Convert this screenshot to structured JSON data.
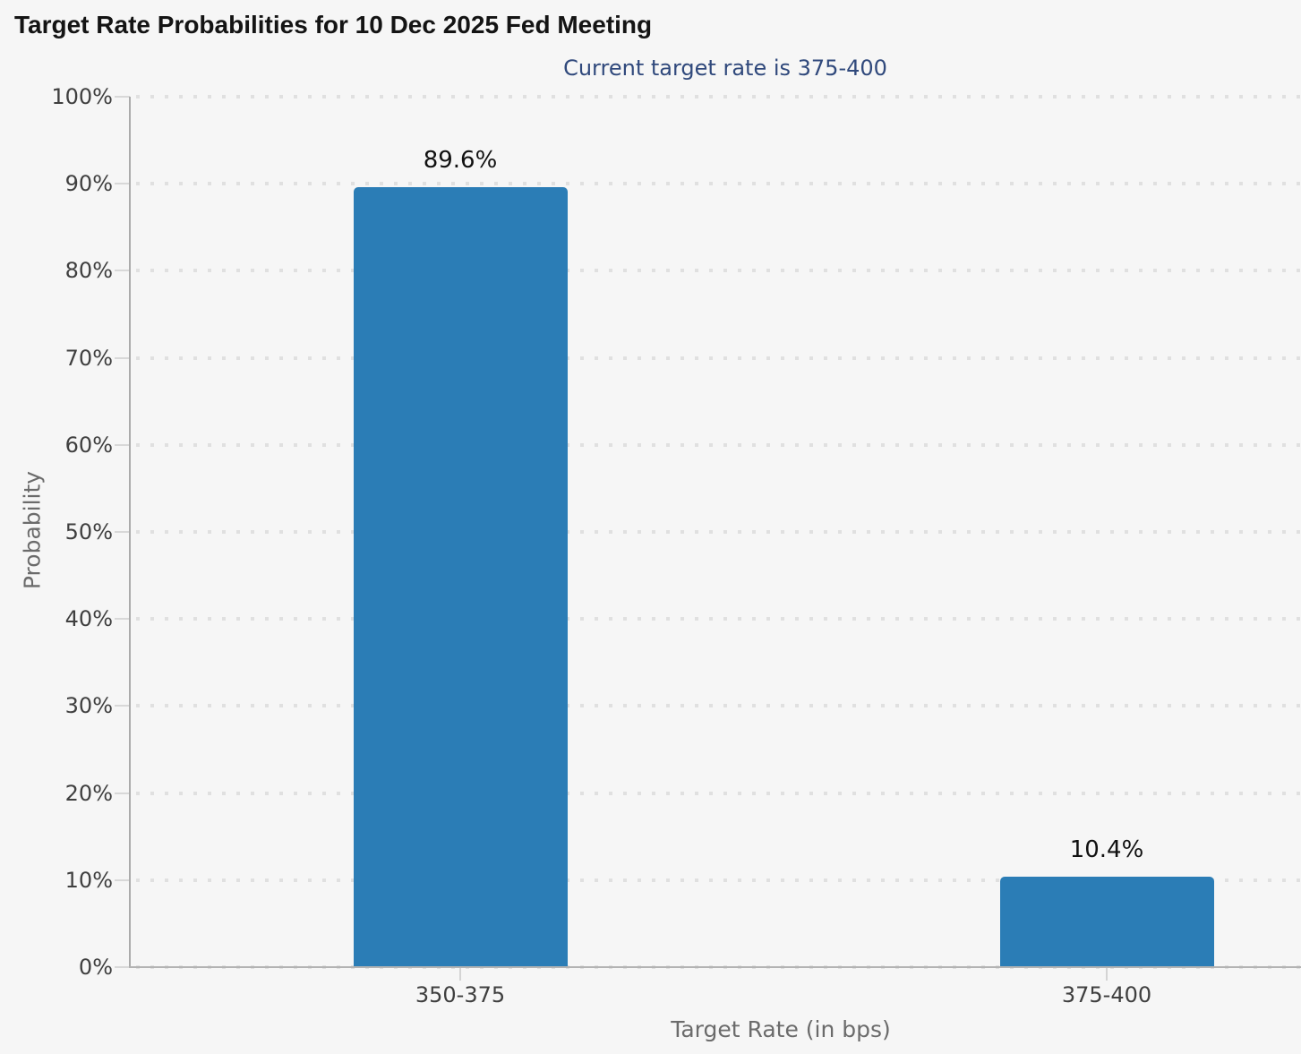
{
  "chart_data": {
    "type": "bar",
    "title": "Target Rate Probabilities for 10 Dec 2025 Fed Meeting",
    "subtitle": "Current target rate is 375-400",
    "xlabel": "Target Rate (in bps)",
    "ylabel": "Probability",
    "categories": [
      "350-375",
      "375-400"
    ],
    "values": [
      89.6,
      10.4
    ],
    "value_labels": [
      "89.6%",
      "10.4%"
    ],
    "ylim": [
      0,
      100
    ],
    "ytick_step": 10,
    "ytick_labels": [
      "0%",
      "10%",
      "20%",
      "30%",
      "40%",
      "50%",
      "60%",
      "70%",
      "80%",
      "90%",
      "100%"
    ],
    "grid": "dotted-horizontal",
    "legend": "none",
    "colors": {
      "bar": "#2b7db6",
      "background": "#f6f6f6",
      "title": "#141414",
      "subtitle": "#30497c",
      "axis_line": "#b3b3b3",
      "grid_dot": "#e0e0e0",
      "tick_label": "#3f3f3f",
      "axis_title": "#6b6b6b"
    }
  }
}
